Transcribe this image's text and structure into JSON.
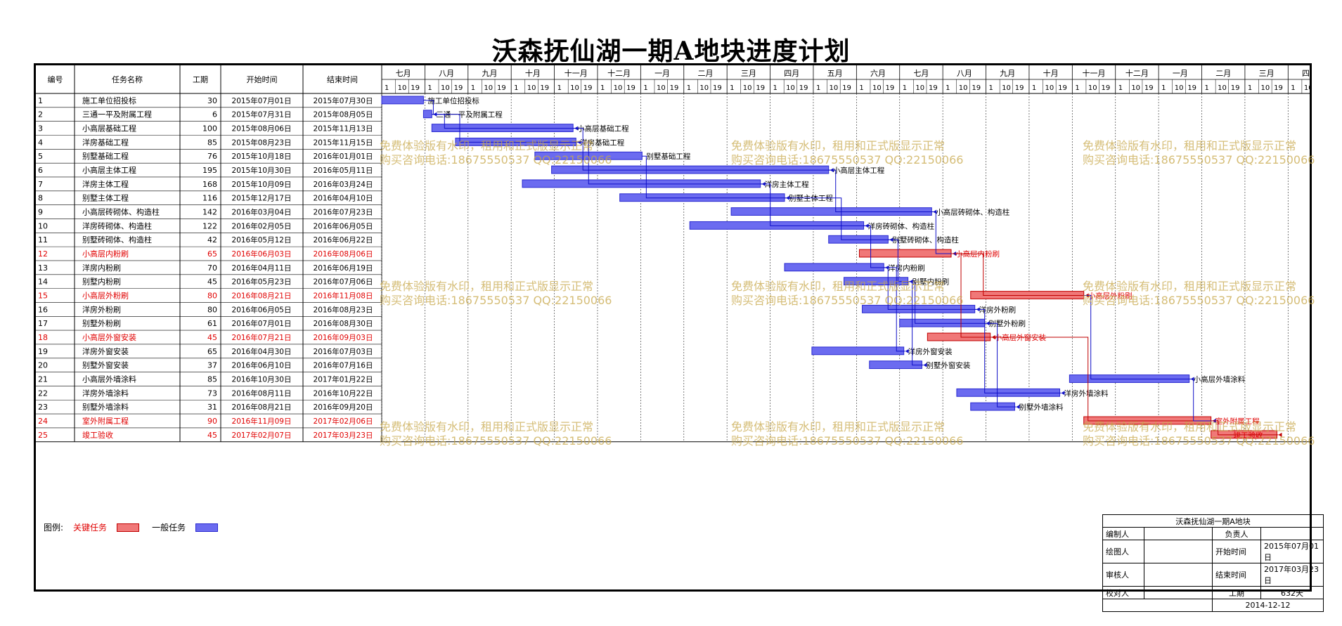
{
  "title": "沃森抚仙湖一期A地块进度计划",
  "headers": {
    "id": "编号",
    "name": "任务名称",
    "dur": "工期",
    "start": "开始时间",
    "end": "结束时间"
  },
  "months": [
    "七月",
    "八月",
    "九月",
    "十月",
    "十一月",
    "十二月",
    "一月",
    "二月",
    "三月",
    "四月",
    "五月",
    "六月",
    "七月",
    "八月",
    "九月",
    "十月",
    "十一月",
    "十二月",
    "一月",
    "二月",
    "三月",
    "四月"
  ],
  "day_ticks": [
    "1",
    "10",
    "19"
  ],
  "tasks": [
    {
      "id": "1",
      "name": "施工单位招投标",
      "dur": "30",
      "start": "2015年07月01日",
      "end": "2015年07月30日",
      "critical": false
    },
    {
      "id": "2",
      "name": "三通一平及附属工程",
      "dur": "6",
      "start": "2015年07月31日",
      "end": "2015年08月05日",
      "critical": false
    },
    {
      "id": "3",
      "name": "小高层基础工程",
      "dur": "100",
      "start": "2015年08月06日",
      "end": "2015年11月13日",
      "critical": false
    },
    {
      "id": "4",
      "name": "洋房基础工程",
      "dur": "85",
      "start": "2015年08月23日",
      "end": "2015年11月15日",
      "critical": false
    },
    {
      "id": "5",
      "name": "别墅基础工程",
      "dur": "76",
      "start": "2015年10月18日",
      "end": "2016年01月01日",
      "critical": false
    },
    {
      "id": "6",
      "name": "小高层主体工程",
      "dur": "195",
      "start": "2015年10月30日",
      "end": "2016年05月11日",
      "critical": false
    },
    {
      "id": "7",
      "name": "洋房主体工程",
      "dur": "168",
      "start": "2015年10月09日",
      "end": "2016年03月24日",
      "critical": false
    },
    {
      "id": "8",
      "name": "别墅主体工程",
      "dur": "116",
      "start": "2015年12月17日",
      "end": "2016年04月10日",
      "critical": false
    },
    {
      "id": "9",
      "name": "小高层砖砌体、构造柱",
      "dur": "142",
      "start": "2016年03月04日",
      "end": "2016年07月23日",
      "critical": false
    },
    {
      "id": "10",
      "name": "洋房砖砌体、构造柱",
      "dur": "122",
      "start": "2016年02月05日",
      "end": "2016年06月05日",
      "critical": false
    },
    {
      "id": "11",
      "name": "别墅砖砌体、构造柱",
      "dur": "42",
      "start": "2016年05月12日",
      "end": "2016年06月22日",
      "critical": false
    },
    {
      "id": "12",
      "name": "小高层内粉刷",
      "dur": "65",
      "start": "2016年06月03日",
      "end": "2016年08月06日",
      "critical": true
    },
    {
      "id": "13",
      "name": "洋房内粉刷",
      "dur": "70",
      "start": "2016年04月11日",
      "end": "2016年06月19日",
      "critical": false
    },
    {
      "id": "14",
      "name": "别墅内粉刷",
      "dur": "45",
      "start": "2016年05月23日",
      "end": "2016年07月06日",
      "critical": false
    },
    {
      "id": "15",
      "name": "小高层外粉刷",
      "dur": "80",
      "start": "2016年08月21日",
      "end": "2016年11月08日",
      "critical": true
    },
    {
      "id": "16",
      "name": "洋房外粉刷",
      "dur": "80",
      "start": "2016年06月05日",
      "end": "2016年08月23日",
      "critical": false
    },
    {
      "id": "17",
      "name": "别墅外粉刷",
      "dur": "61",
      "start": "2016年07月01日",
      "end": "2016年08月30日",
      "critical": false
    },
    {
      "id": "18",
      "name": "小高层外窗安装",
      "dur": "45",
      "start": "2016年07月21日",
      "end": "2016年09月03日",
      "critical": true
    },
    {
      "id": "19",
      "name": "洋房外窗安装",
      "dur": "65",
      "start": "2016年04月30日",
      "end": "2016年07月03日",
      "critical": false
    },
    {
      "id": "20",
      "name": "别墅外窗安装",
      "dur": "37",
      "start": "2016年06月10日",
      "end": "2016年07月16日",
      "critical": false
    },
    {
      "id": "21",
      "name": "小高层外墙涂料",
      "dur": "85",
      "start": "2016年10月30日",
      "end": "2017年01月22日",
      "critical": false
    },
    {
      "id": "22",
      "name": "洋房外墙涂料",
      "dur": "73",
      "start": "2016年08月11日",
      "end": "2016年10月22日",
      "critical": false
    },
    {
      "id": "23",
      "name": "别墅外墙涂料",
      "dur": "31",
      "start": "2016年08月21日",
      "end": "2016年09月20日",
      "critical": false
    },
    {
      "id": "24",
      "name": "室外附属工程",
      "dur": "90",
      "start": "2016年11月09日",
      "end": "2017年02月06日",
      "critical": true
    },
    {
      "id": "25",
      "name": "竣工验收",
      "dur": "45",
      "start": "2017年02月07日",
      "end": "2017年03月23日",
      "critical": true
    }
  ],
  "timeline": {
    "chart_start": "2015-07-01"
  },
  "watermark": {
    "line1": "免费体验版有水印，租用和正式版显示正常",
    "line2": "购买咨询电话:18675550537 QQ:22150066"
  },
  "legend": {
    "label": "图例:",
    "critical": "关键任务",
    "normal": "一般任务"
  },
  "info": {
    "project": "沃森抚仙湖一期A地块",
    "editor_label": "编制人",
    "owner_label": "负责人",
    "drawer_label": "绘图人",
    "start_label": "开始时间",
    "start_val": "2015年07月01日",
    "reviewer_label": "审核人",
    "end_label": "结束时间",
    "end_val": "2017年03月23日",
    "checker_label": "校对人",
    "dur_label": "工期",
    "dur_val": "632天",
    "date": "2014-12-12"
  },
  "colors": {
    "normal": "#6b6bf0",
    "normal_edge": "#2a2ad0",
    "critical": "#f07878",
    "critical_edge": "#c00000",
    "link": "#1010c8",
    "critical_text": "#e00000"
  }
}
